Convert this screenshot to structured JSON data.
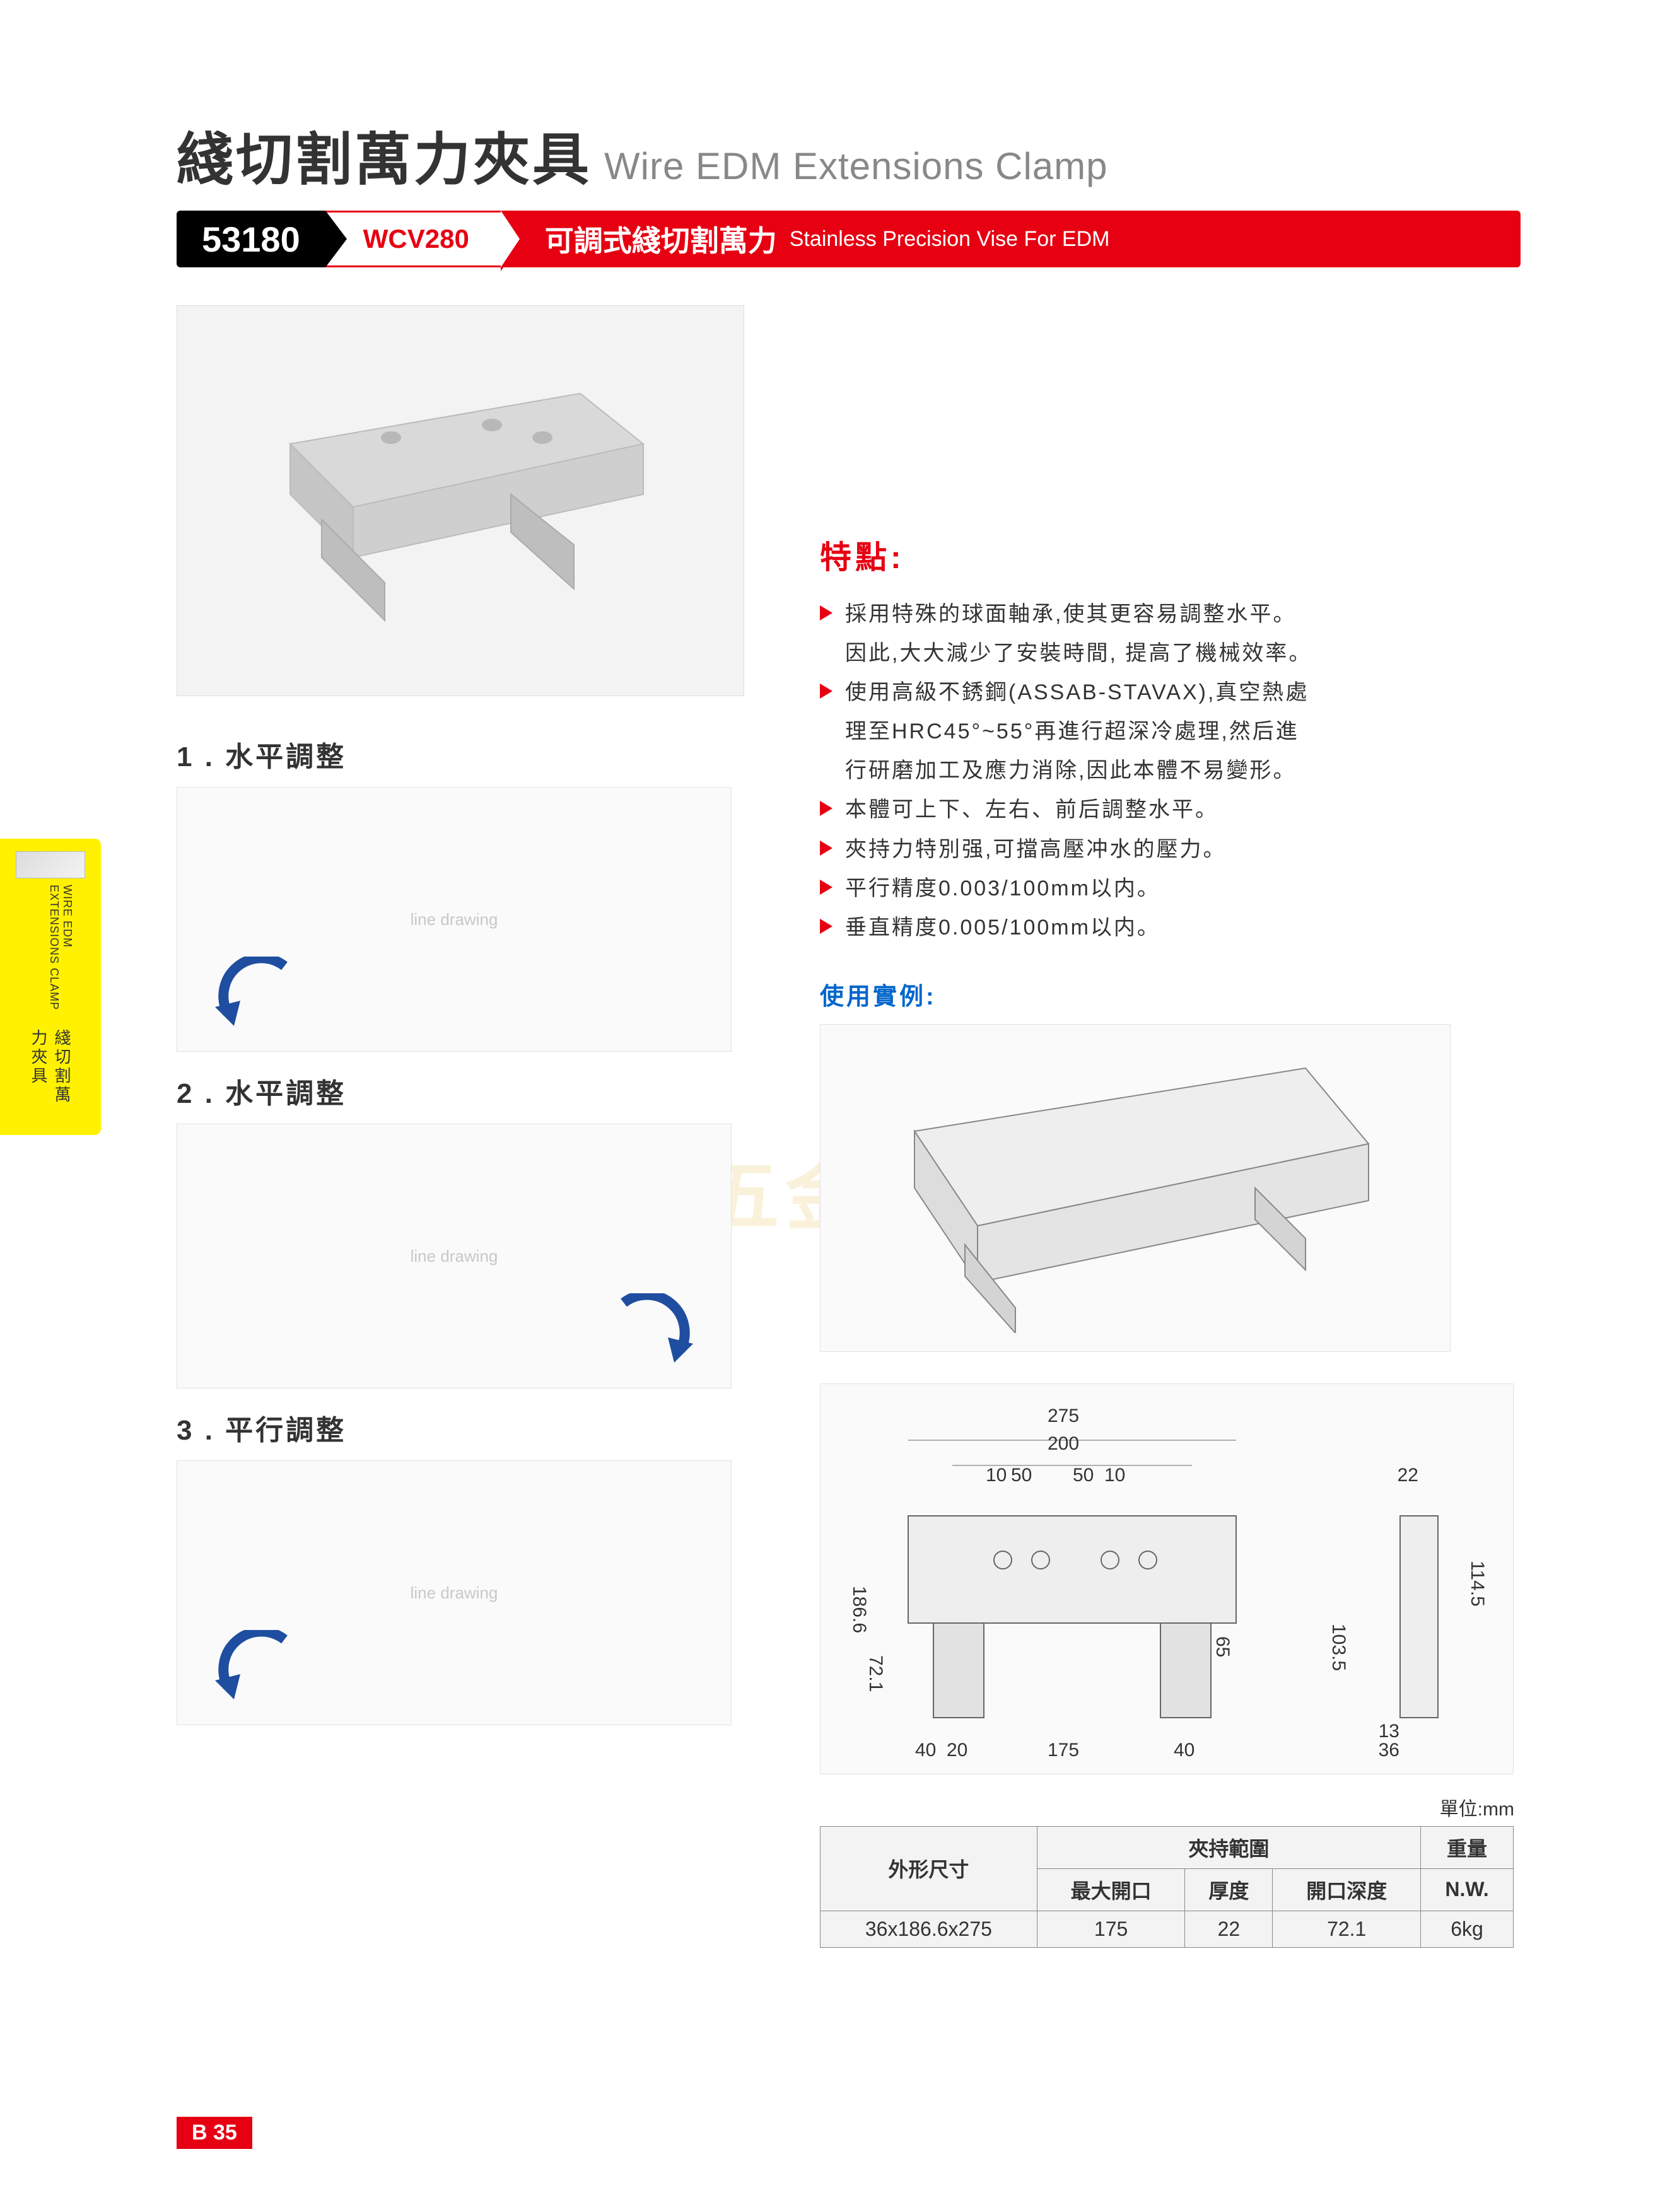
{
  "header": {
    "title_cn": "綫切割萬力夾具",
    "title_en": "Wire EDM Extensions Clamp"
  },
  "banner": {
    "code": "53180",
    "model": "WCV280",
    "desc_cn": "可調式綫切割萬力",
    "desc_en": "Stainless Precision Vise For EDM",
    "bg_color": "#e60012",
    "code_bg": "#000000"
  },
  "side_tab": {
    "cn": "綫切割萬力夾具",
    "en": "WIRE EDM EXTENSIONS CLAMP",
    "bg": "#fff100"
  },
  "steps": [
    {
      "num": "1",
      "label": "水平調整"
    },
    {
      "num": "2",
      "label": "水平調整"
    },
    {
      "num": "3",
      "label": "平行調整"
    }
  ],
  "features": {
    "title": "特點:",
    "title_color": "#e60012",
    "items": [
      {
        "text": "採用特殊的球面軸承,使其更容易調整水平。",
        "arrow": true
      },
      {
        "text": "因此,大大減少了安裝時間, 提高了機械效率。",
        "arrow": false
      },
      {
        "text": "使用高級不銹鋼(ASSAB-STAVAX),真空熱處",
        "arrow": true
      },
      {
        "text": "理至HRC45°~55°再進行超深冷處理,然后進",
        "arrow": false
      },
      {
        "text": "行研磨加工及應力消除,因此本體不易變形。",
        "arrow": false
      },
      {
        "text": "本體可上下、左右、前后調整水平。",
        "arrow": true
      },
      {
        "text": "夾持力特別强,可擋高壓冲水的壓力。",
        "arrow": true
      },
      {
        "text": "平行精度0.003/100mm以内。",
        "arrow": true
      },
      {
        "text": "垂直精度0.005/100mm以内。",
        "arrow": true
      }
    ]
  },
  "example": {
    "title": "使用實例:",
    "title_color": "#0066cc"
  },
  "dimensions": {
    "values": [
      "275",
      "200",
      "10",
      "50",
      "50",
      "10",
      "22",
      "186.6",
      "72.1",
      "40",
      "20",
      "175",
      "40",
      "65",
      "103.5",
      "114.5",
      "13",
      "36"
    ]
  },
  "spec_table": {
    "unit": "單位:mm",
    "header1": "外形尺寸",
    "header2": "夾持範圍",
    "header3": "重量",
    "sub_headers": [
      "最大開口",
      "厚度",
      "開口深度"
    ],
    "nw_label": "N.W.",
    "row": {
      "outline": "36x186.6x275",
      "max_open": "175",
      "thickness": "22",
      "open_depth": "72.1",
      "weight": "6kg"
    },
    "bg": "#f3f3f3",
    "border": "#888888"
  },
  "page_tag": "B 35",
  "watermark": "昆山　　　　五金有限公司銷售部"
}
